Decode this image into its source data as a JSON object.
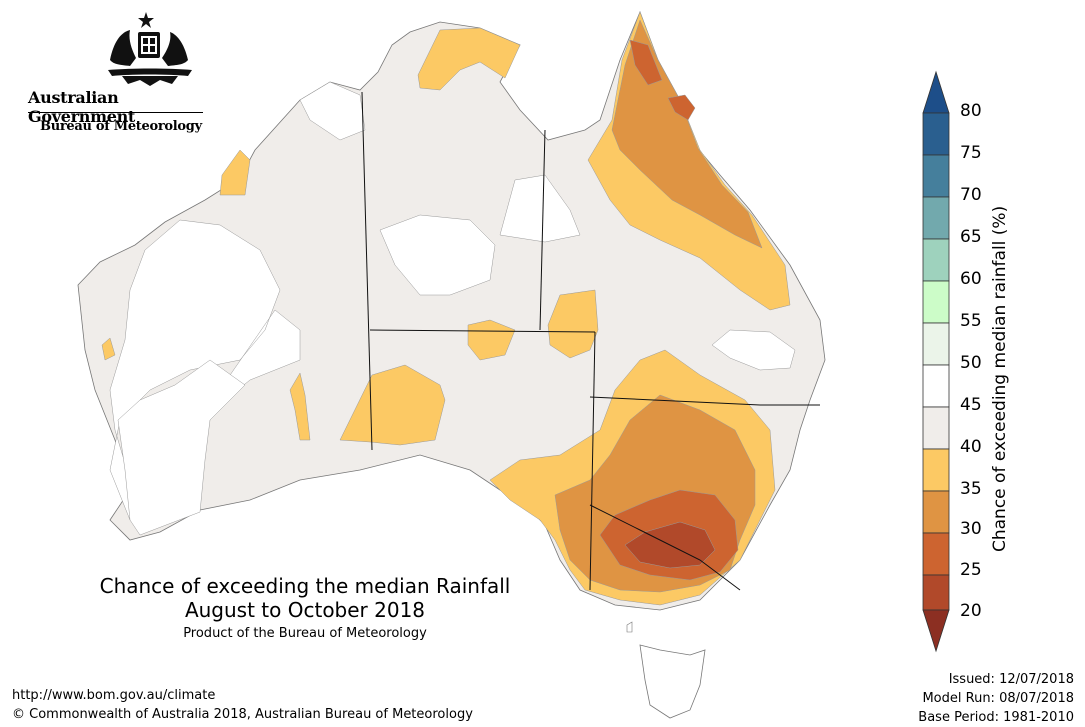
{
  "header": {
    "government": "Australian Government",
    "bureau": "Bureau of Meteorology"
  },
  "map": {
    "title_line1": "Chance of exceeding the median Rainfall",
    "title_line2": "August to October 2018",
    "product": "Product of the Bureau of Meteorology"
  },
  "legend": {
    "label": "Chance of exceeding median rainfall (%)",
    "ticks": [
      "80",
      "75",
      "70",
      "65",
      "60",
      "55",
      "50",
      "45",
      "40",
      "35",
      "30",
      "25",
      "20"
    ],
    "colors": {
      "75-80": "#2a5f8f",
      "70-75": "#457f9c",
      "65-70": "#72a9ad",
      "60-65": "#9ed2bd",
      "55-60": "#ccfcc8",
      "50-55": "#ebf4e9",
      "45-50": "#ffffff",
      "40-45": "#f0edea",
      "35-40": "#fcc964",
      "30-35": "#df9443",
      "25-30": "#cd6430",
      "20-25": "#b1492a",
      "below-20": "#8c2f22",
      "above-80": "#1d4e89"
    }
  },
  "footer": {
    "url": "http://www.bom.gov.au/climate",
    "copyright": "© Commonwealth of Australia 2018, Australian Bureau of Meteorology",
    "issued": "Issued: 12/07/2018",
    "model_run": "Model Run: 08/07/2018",
    "base_period": "Base Period: 1981-2010"
  }
}
